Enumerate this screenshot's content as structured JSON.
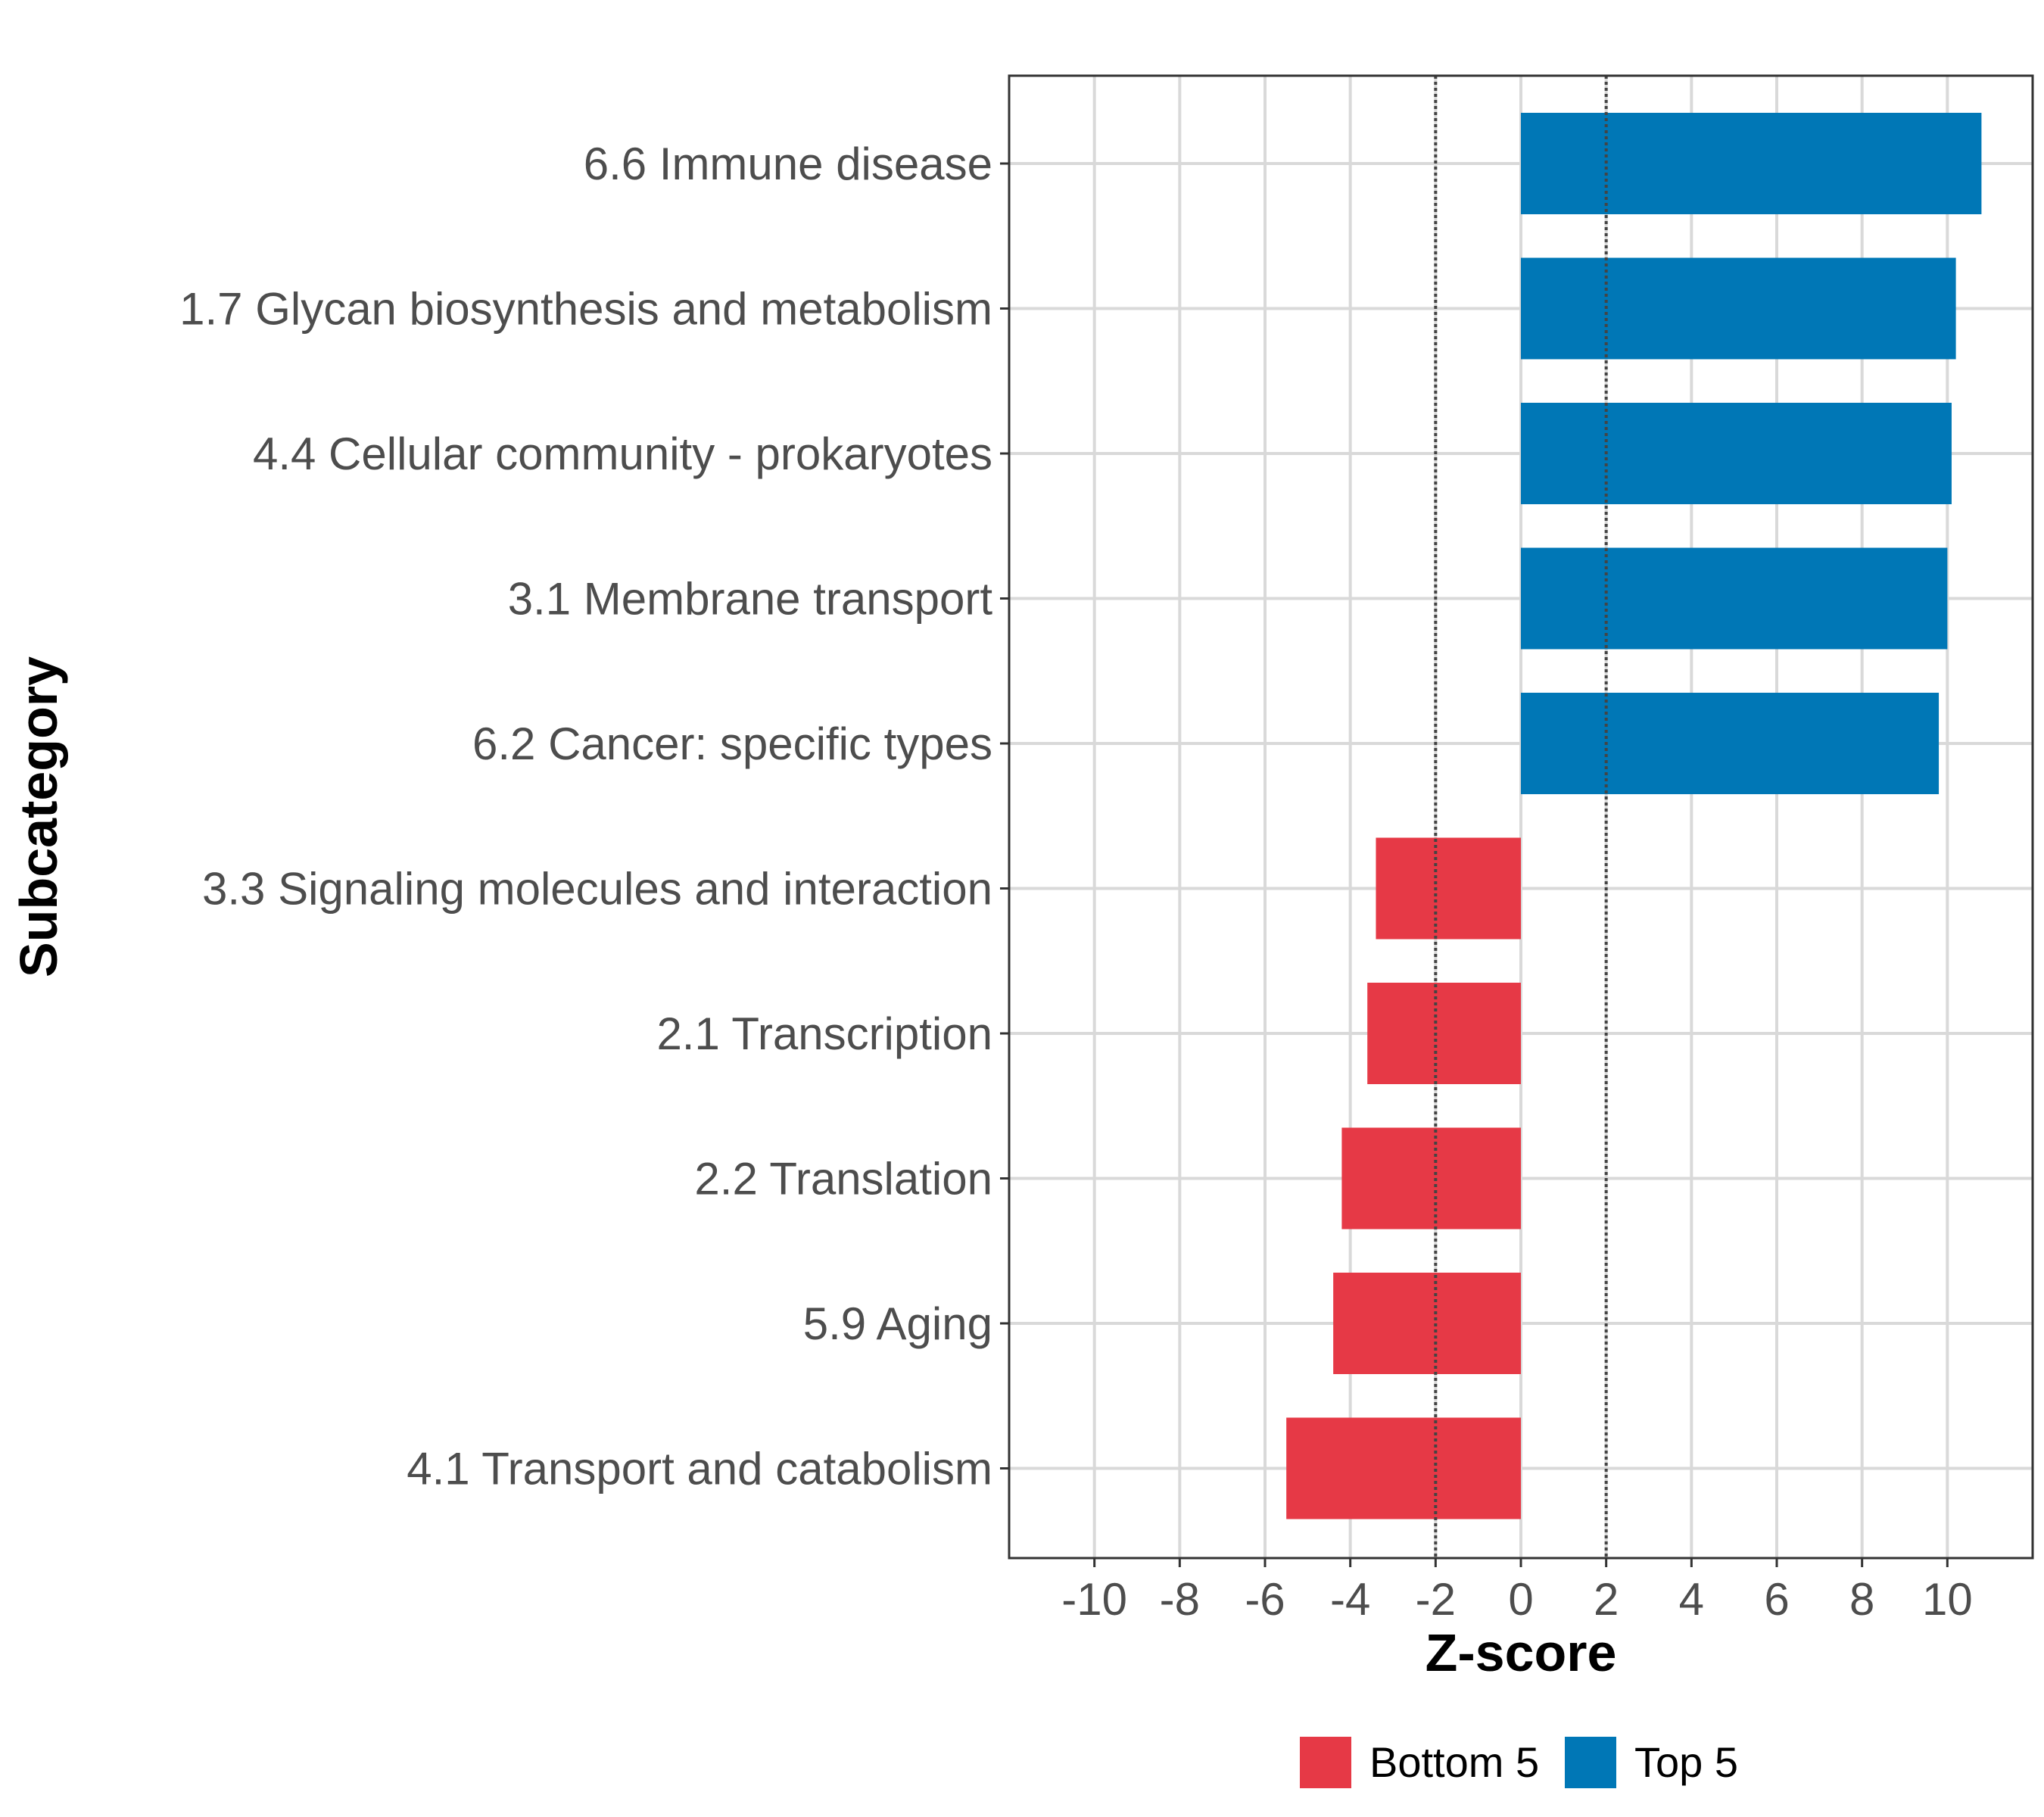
{
  "chart_data": {
    "type": "bar",
    "orientation": "horizontal",
    "xlabel": "Z-score",
    "ylabel": "Subcategory",
    "xlim": [
      -12,
      12
    ],
    "xticks": [
      -10,
      -8,
      -6,
      -4,
      -2,
      0,
      2,
      4,
      6,
      8,
      10
    ],
    "xtick_labels": [
      "-10",
      "-8",
      "-6",
      "-4",
      "-2",
      "0",
      "2",
      "4",
      "6",
      "8",
      "10"
    ],
    "reference_lines": [
      -2,
      2
    ],
    "grid": true,
    "legend_position": "bottom",
    "categories": [
      "6.6 Immune disease",
      "1.7 Glycan biosynthesis and metabolism",
      "4.4 Cellular community - prokaryotes",
      "3.1 Membrane transport",
      "6.2 Cancer: specific types",
      "3.3 Signaling molecules and interaction",
      "2.1 Transcription",
      "2.2 Translation",
      "5.9 Aging",
      "4.1 Transport and catabolism"
    ],
    "values": [
      10.8,
      10.2,
      10.1,
      10.0,
      9.8,
      -3.4,
      -3.6,
      -4.2,
      -4.4,
      -5.5
    ],
    "groups": [
      "Top 5",
      "Top 5",
      "Top 5",
      "Top 5",
      "Top 5",
      "Bottom 5",
      "Bottom 5",
      "Bottom 5",
      "Bottom 5",
      "Bottom 5"
    ],
    "legend": [
      {
        "name": "Bottom 5",
        "color": "#E63946"
      },
      {
        "name": "Top 5",
        "color": "#0077B6"
      }
    ]
  }
}
